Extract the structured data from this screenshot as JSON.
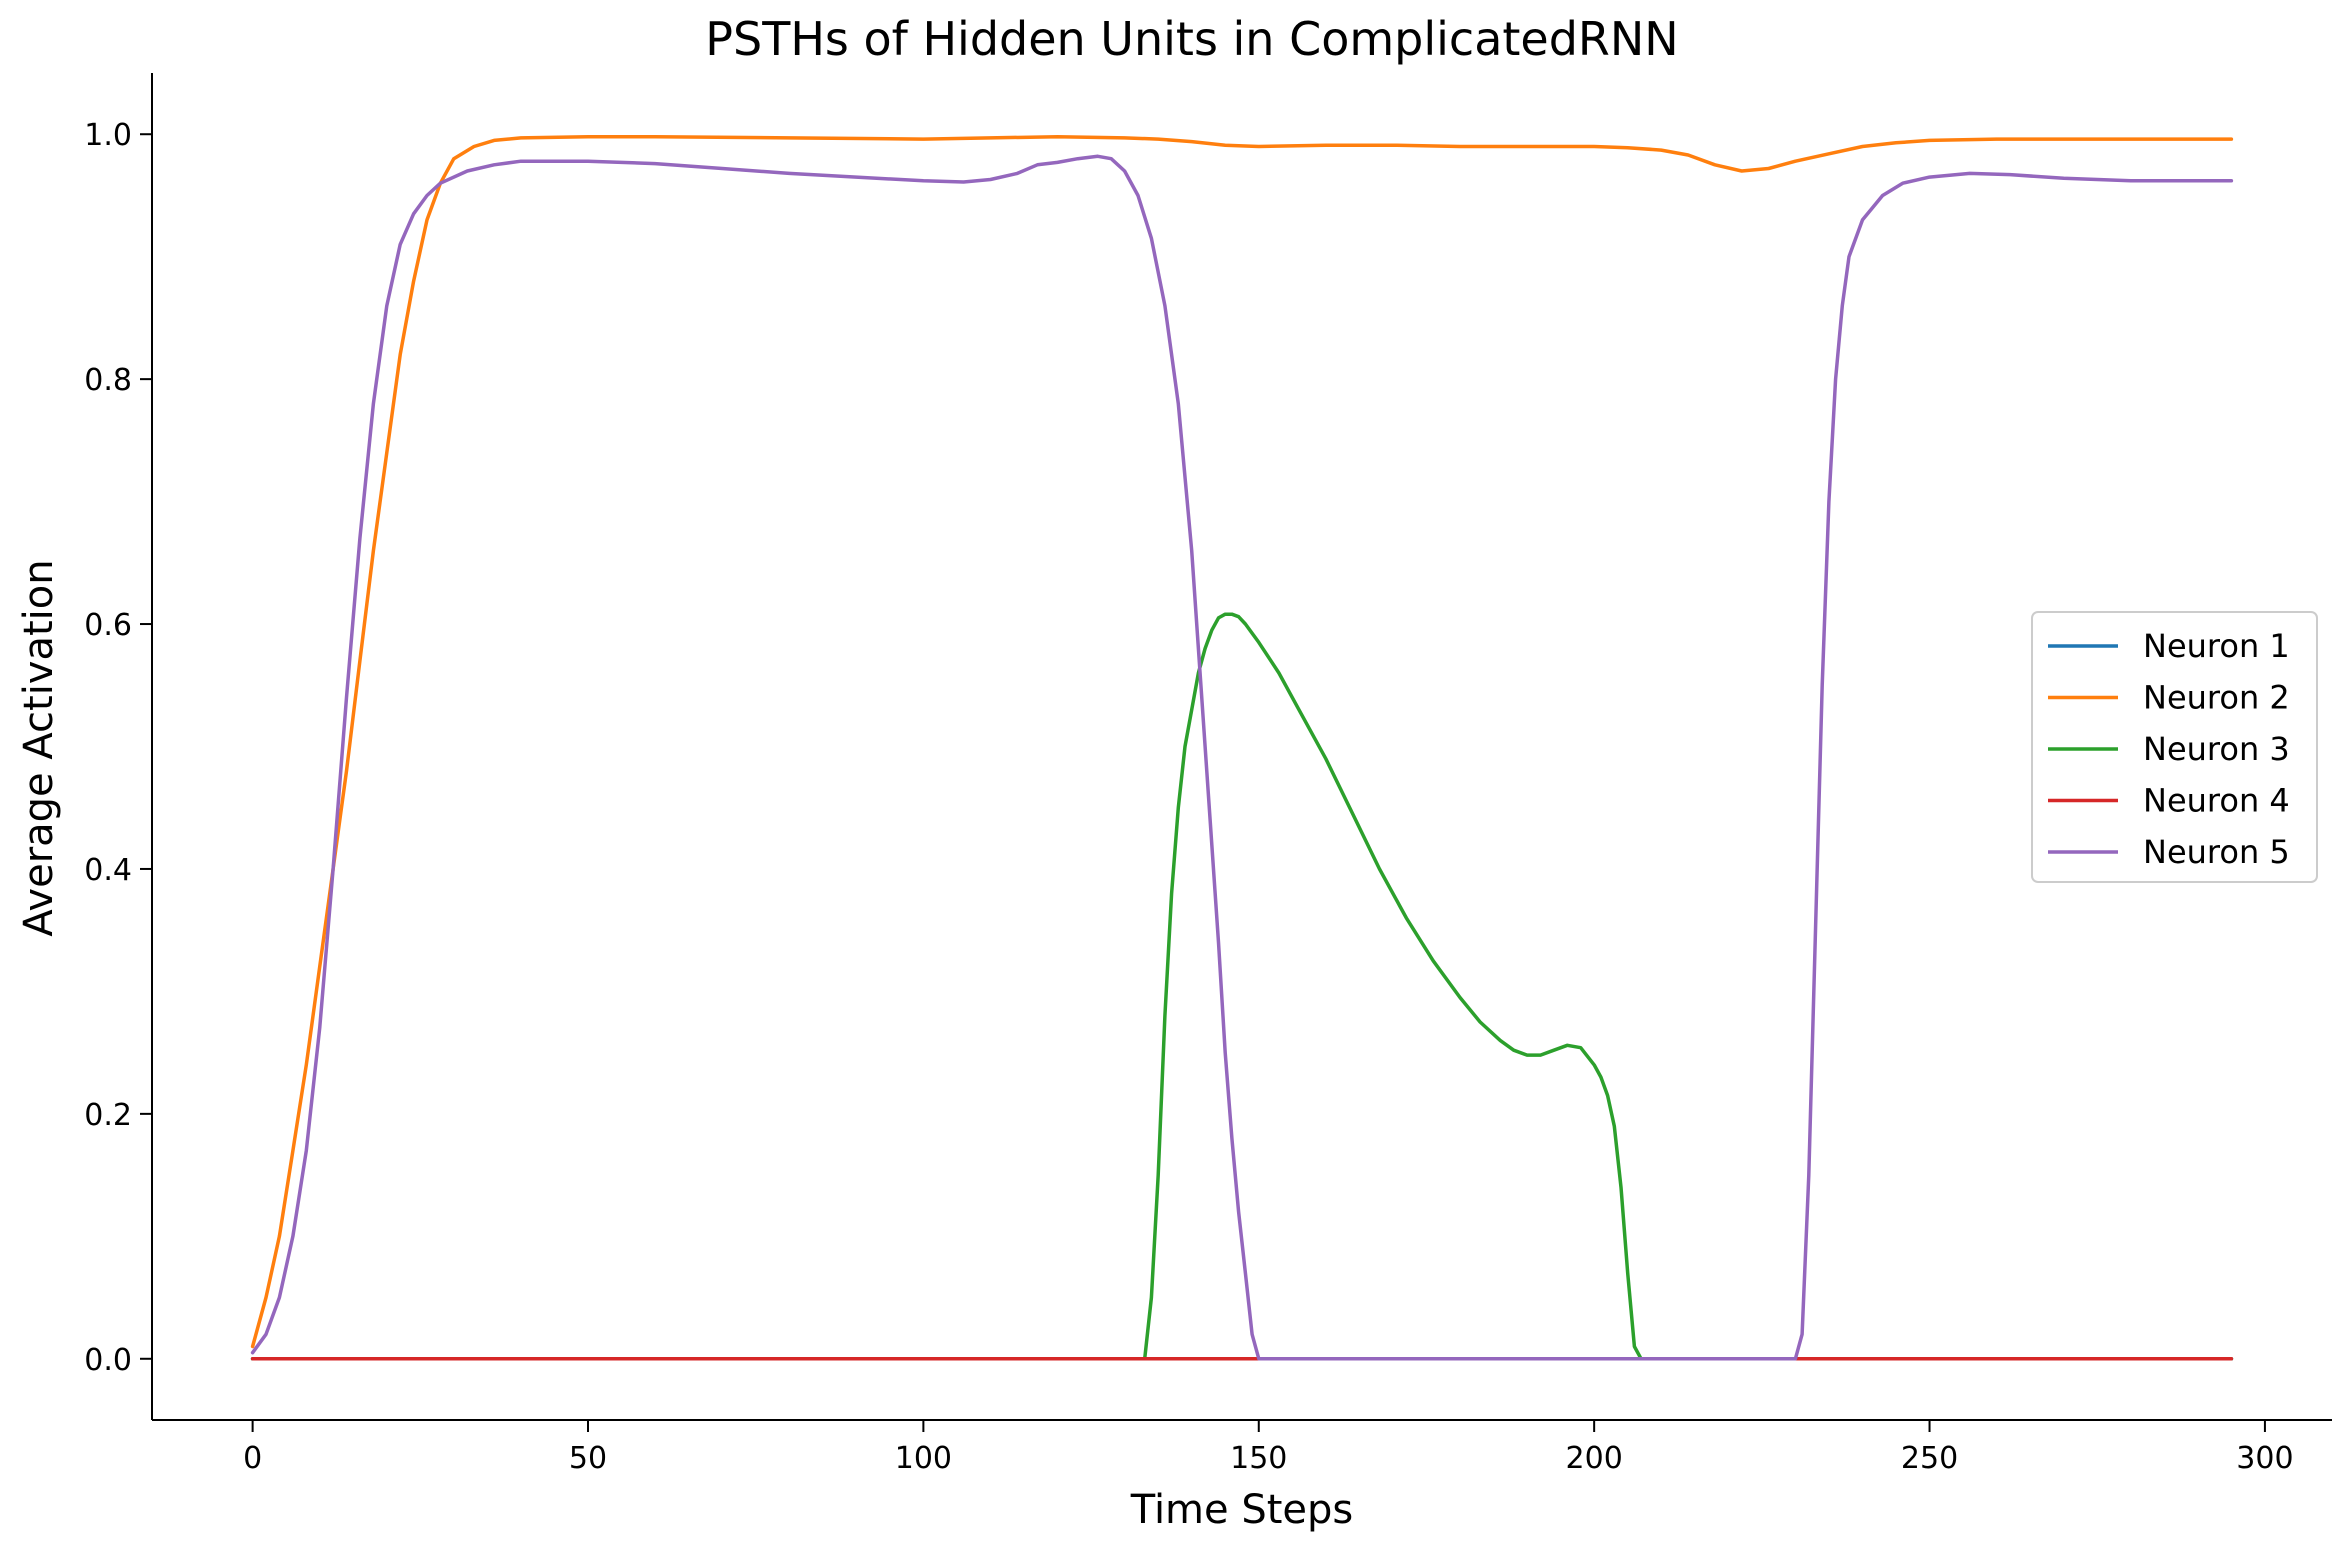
{
  "chart_data": {
    "type": "line",
    "title": "PSTHs of Hidden Units in ComplicatedRNN",
    "xlabel": "Time Steps",
    "ylabel": "Average Activation",
    "xlim": [
      -15,
      310
    ],
    "ylim": [
      -0.05,
      1.05
    ],
    "xticks": [
      0,
      50,
      100,
      150,
      200,
      250,
      300
    ],
    "yticks": [
      0.0,
      0.2,
      0.4,
      0.6,
      0.8,
      1.0
    ],
    "xtick_labels": [
      "0",
      "50",
      "100",
      "150",
      "200",
      "250",
      "300"
    ],
    "ytick_labels": [
      "0.0",
      "0.2",
      "0.4",
      "0.6",
      "0.8",
      "1.0"
    ],
    "grid": false,
    "legend_position": "center-right",
    "series": [
      {
        "name": "Neuron 1",
        "color": "#1f77b4",
        "points": [
          [
            0,
            0.0
          ],
          [
            295,
            0.0
          ]
        ]
      },
      {
        "name": "Neuron 2",
        "color": "#ff7f0e",
        "points": [
          [
            0,
            0.01
          ],
          [
            2,
            0.05
          ],
          [
            4,
            0.1
          ],
          [
            6,
            0.17
          ],
          [
            8,
            0.24
          ],
          [
            10,
            0.32
          ],
          [
            12,
            0.4
          ],
          [
            14,
            0.48
          ],
          [
            16,
            0.57
          ],
          [
            18,
            0.66
          ],
          [
            20,
            0.74
          ],
          [
            22,
            0.82
          ],
          [
            24,
            0.88
          ],
          [
            26,
            0.93
          ],
          [
            28,
            0.96
          ],
          [
            30,
            0.98
          ],
          [
            33,
            0.99
          ],
          [
            36,
            0.995
          ],
          [
            40,
            0.997
          ],
          [
            50,
            0.998
          ],
          [
            60,
            0.998
          ],
          [
            80,
            0.997
          ],
          [
            100,
            0.996
          ],
          [
            110,
            0.997
          ],
          [
            120,
            0.998
          ],
          [
            130,
            0.997
          ],
          [
            135,
            0.996
          ],
          [
            140,
            0.994
          ],
          [
            145,
            0.991
          ],
          [
            150,
            0.99
          ],
          [
            160,
            0.991
          ],
          [
            170,
            0.991
          ],
          [
            180,
            0.99
          ],
          [
            190,
            0.99
          ],
          [
            200,
            0.99
          ],
          [
            205,
            0.989
          ],
          [
            210,
            0.987
          ],
          [
            214,
            0.983
          ],
          [
            218,
            0.975
          ],
          [
            222,
            0.97
          ],
          [
            226,
            0.972
          ],
          [
            230,
            0.978
          ],
          [
            235,
            0.984
          ],
          [
            240,
            0.99
          ],
          [
            245,
            0.993
          ],
          [
            250,
            0.995
          ],
          [
            260,
            0.996
          ],
          [
            280,
            0.996
          ],
          [
            295,
            0.996
          ]
        ]
      },
      {
        "name": "Neuron 3",
        "color": "#2ca02c",
        "points": [
          [
            0,
            0.0
          ],
          [
            133,
            0.0
          ],
          [
            134,
            0.05
          ],
          [
            135,
            0.15
          ],
          [
            136,
            0.28
          ],
          [
            137,
            0.38
          ],
          [
            138,
            0.45
          ],
          [
            139,
            0.5
          ],
          [
            140,
            0.53
          ],
          [
            141,
            0.56
          ],
          [
            142,
            0.58
          ],
          [
            143,
            0.595
          ],
          [
            144,
            0.605
          ],
          [
            145,
            0.608
          ],
          [
            146,
            0.608
          ],
          [
            147,
            0.606
          ],
          [
            148,
            0.6
          ],
          [
            150,
            0.585
          ],
          [
            153,
            0.56
          ],
          [
            156,
            0.53
          ],
          [
            160,
            0.49
          ],
          [
            164,
            0.445
          ],
          [
            168,
            0.4
          ],
          [
            172,
            0.36
          ],
          [
            176,
            0.325
          ],
          [
            180,
            0.295
          ],
          [
            183,
            0.275
          ],
          [
            186,
            0.26
          ],
          [
            188,
            0.252
          ],
          [
            190,
            0.248
          ],
          [
            192,
            0.248
          ],
          [
            194,
            0.252
          ],
          [
            196,
            0.256
          ],
          [
            198,
            0.254
          ],
          [
            200,
            0.24
          ],
          [
            201,
            0.23
          ],
          [
            202,
            0.215
          ],
          [
            203,
            0.19
          ],
          [
            204,
            0.14
          ],
          [
            205,
            0.07
          ],
          [
            206,
            0.01
          ],
          [
            207,
            0.0
          ],
          [
            295,
            0.0
          ]
        ]
      },
      {
        "name": "Neuron 4",
        "color": "#d62728",
        "points": [
          [
            0,
            0.0
          ],
          [
            295,
            0.0
          ]
        ]
      },
      {
        "name": "Neuron 5",
        "color": "#9467bd",
        "points": [
          [
            0,
            0.005
          ],
          [
            2,
            0.02
          ],
          [
            4,
            0.05
          ],
          [
            6,
            0.1
          ],
          [
            8,
            0.17
          ],
          [
            10,
            0.27
          ],
          [
            12,
            0.4
          ],
          [
            14,
            0.54
          ],
          [
            16,
            0.67
          ],
          [
            18,
            0.78
          ],
          [
            20,
            0.86
          ],
          [
            22,
            0.91
          ],
          [
            24,
            0.935
          ],
          [
            26,
            0.95
          ],
          [
            28,
            0.96
          ],
          [
            32,
            0.97
          ],
          [
            36,
            0.975
          ],
          [
            40,
            0.978
          ],
          [
            50,
            0.978
          ],
          [
            60,
            0.976
          ],
          [
            70,
            0.972
          ],
          [
            80,
            0.968
          ],
          [
            90,
            0.965
          ],
          [
            100,
            0.962
          ],
          [
            106,
            0.961
          ],
          [
            110,
            0.963
          ],
          [
            114,
            0.968
          ],
          [
            117,
            0.975
          ],
          [
            120,
            0.977
          ],
          [
            123,
            0.98
          ],
          [
            126,
            0.982
          ],
          [
            128,
            0.98
          ],
          [
            130,
            0.97
          ],
          [
            132,
            0.95
          ],
          [
            134,
            0.915
          ],
          [
            136,
            0.86
          ],
          [
            138,
            0.78
          ],
          [
            140,
            0.66
          ],
          [
            142,
            0.5
          ],
          [
            144,
            0.34
          ],
          [
            145,
            0.25
          ],
          [
            146,
            0.18
          ],
          [
            147,
            0.12
          ],
          [
            148,
            0.07
          ],
          [
            149,
            0.02
          ],
          [
            150,
            0.0
          ],
          [
            230,
            0.0
          ],
          [
            231,
            0.02
          ],
          [
            232,
            0.15
          ],
          [
            233,
            0.35
          ],
          [
            234,
            0.55
          ],
          [
            235,
            0.7
          ],
          [
            236,
            0.8
          ],
          [
            237,
            0.86
          ],
          [
            238,
            0.9
          ],
          [
            240,
            0.93
          ],
          [
            243,
            0.95
          ],
          [
            246,
            0.96
          ],
          [
            250,
            0.965
          ],
          [
            256,
            0.968
          ],
          [
            262,
            0.967
          ],
          [
            270,
            0.964
          ],
          [
            280,
            0.962
          ],
          [
            295,
            0.962
          ]
        ]
      }
    ]
  }
}
